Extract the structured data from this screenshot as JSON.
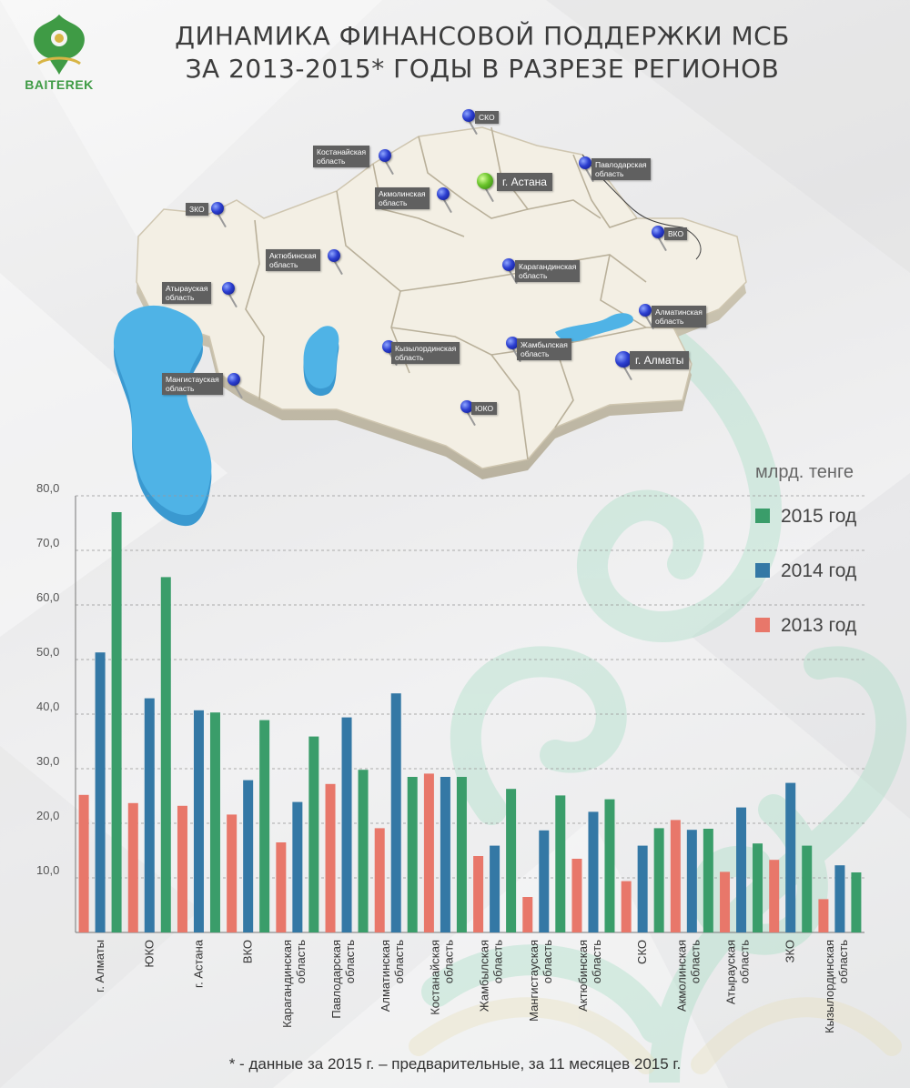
{
  "logo": {
    "text": "BAITEREK",
    "icon": "baiterek-tree-emblem"
  },
  "title": {
    "line1": "ДИНАМИКА ФИНАНСОВОЙ ПОДДЕРЖКИ МСБ",
    "line2": "ЗА 2013-2015* ГОДЫ В РАЗРЕЗЕ РЕГИОНОВ"
  },
  "map": {
    "pins": [
      {
        "label": "СКО",
        "lines": [
          "СКО"
        ]
      },
      {
        "label": "Костанайская область",
        "lines": [
          "Костанайская",
          "область"
        ]
      },
      {
        "label": "Павлодарская область",
        "lines": [
          "Павлодарская",
          "область"
        ]
      },
      {
        "label": "г. Астана",
        "lines": [
          "г. Астана"
        ]
      },
      {
        "label": "ЗКО",
        "lines": [
          "ЗКО"
        ]
      },
      {
        "label": "Акмолинская область",
        "lines": [
          "Акмолинская",
          "область"
        ]
      },
      {
        "label": "ВКО",
        "lines": [
          "ВКО"
        ]
      },
      {
        "label": "Актюбинская область",
        "lines": [
          "Актюбинская",
          "область"
        ]
      },
      {
        "label": "Карагандинская область",
        "lines": [
          "Карагандинская",
          "область"
        ]
      },
      {
        "label": "Атырауская область",
        "lines": [
          "Атырауская",
          "область"
        ]
      },
      {
        "label": "Алматинская область",
        "lines": [
          "Алматинская",
          "область"
        ]
      },
      {
        "label": "Кызылординская область",
        "lines": [
          "Кызылординская",
          "область"
        ]
      },
      {
        "label": "Жамбылская область",
        "lines": [
          "Жамбылская",
          "область"
        ]
      },
      {
        "label": "г. Алматы",
        "lines": [
          "г. Алматы"
        ]
      },
      {
        "label": "Мангистауская область",
        "lines": [
          "Мангистауская",
          "область"
        ]
      },
      {
        "label": "ЮКО",
        "lines": [
          "ЮКО"
        ]
      }
    ],
    "colors": {
      "land": "#f3efe4",
      "water": "#4fb3e6",
      "pin": "#2c3fd0",
      "capital_pin": "#69c32a",
      "tag": "#606060"
    }
  },
  "legend": {
    "title": "млрд. тенге",
    "items": [
      {
        "label": "2015 год",
        "color": "#3a9d6a"
      },
      {
        "label": "2014 год",
        "color": "#3478a5"
      },
      {
        "label": "2013 год",
        "color": "#e8776a"
      }
    ]
  },
  "chart_data": {
    "type": "bar",
    "unit": "млрд. тенге",
    "categories": [
      [
        "г. Алматы"
      ],
      [
        "ЮКО"
      ],
      [
        "г. Астана"
      ],
      [
        "ВКО"
      ],
      [
        "Карагандинская",
        "область"
      ],
      [
        "Павлодарская",
        "область"
      ],
      [
        "Алматинская",
        "область"
      ],
      [
        "Костанайская",
        "область"
      ],
      [
        "Жамбылская",
        "область"
      ],
      [
        "Мангистауская",
        "область"
      ],
      [
        "Актюбинская",
        "область"
      ],
      [
        "СКО"
      ],
      [
        "Акмолинская",
        "область"
      ],
      [
        "Атырауская",
        "область"
      ],
      [
        "ЗКО"
      ],
      [
        "Кызылординская",
        "область"
      ]
    ],
    "series": [
      {
        "name": "2013 год",
        "color": "#e8776a",
        "values": [
          25.2,
          23.7,
          23.2,
          21.6,
          16.5,
          27.2,
          19.1,
          29.1,
          14.0,
          6.5,
          13.5,
          9.4,
          20.6,
          11.1,
          13.3,
          6.1
        ]
      },
      {
        "name": "2014 год",
        "color": "#3478a5",
        "values": [
          51.3,
          42.9,
          40.7,
          27.9,
          23.9,
          39.4,
          43.8,
          28.5,
          15.9,
          18.7,
          22.1,
          15.9,
          18.8,
          22.9,
          27.4,
          12.3
        ]
      },
      {
        "name": "2015 год",
        "color": "#3a9d6a",
        "values": [
          77.0,
          65.1,
          40.3,
          38.9,
          35.9,
          29.8,
          28.5,
          28.5,
          26.3,
          25.1,
          24.4,
          19.1,
          19.0,
          16.3,
          15.9,
          11.0
        ]
      }
    ],
    "yticks": [
      "10,0",
      "20,0",
      "30,0",
      "40,0",
      "50,0",
      "60,0",
      "70,0",
      "80,0"
    ],
    "ylim": [
      0,
      80
    ],
    "grid": true
  },
  "footnote": "* - данные за 2015 г. – предварительные, за 11 месяцев 2015 г."
}
